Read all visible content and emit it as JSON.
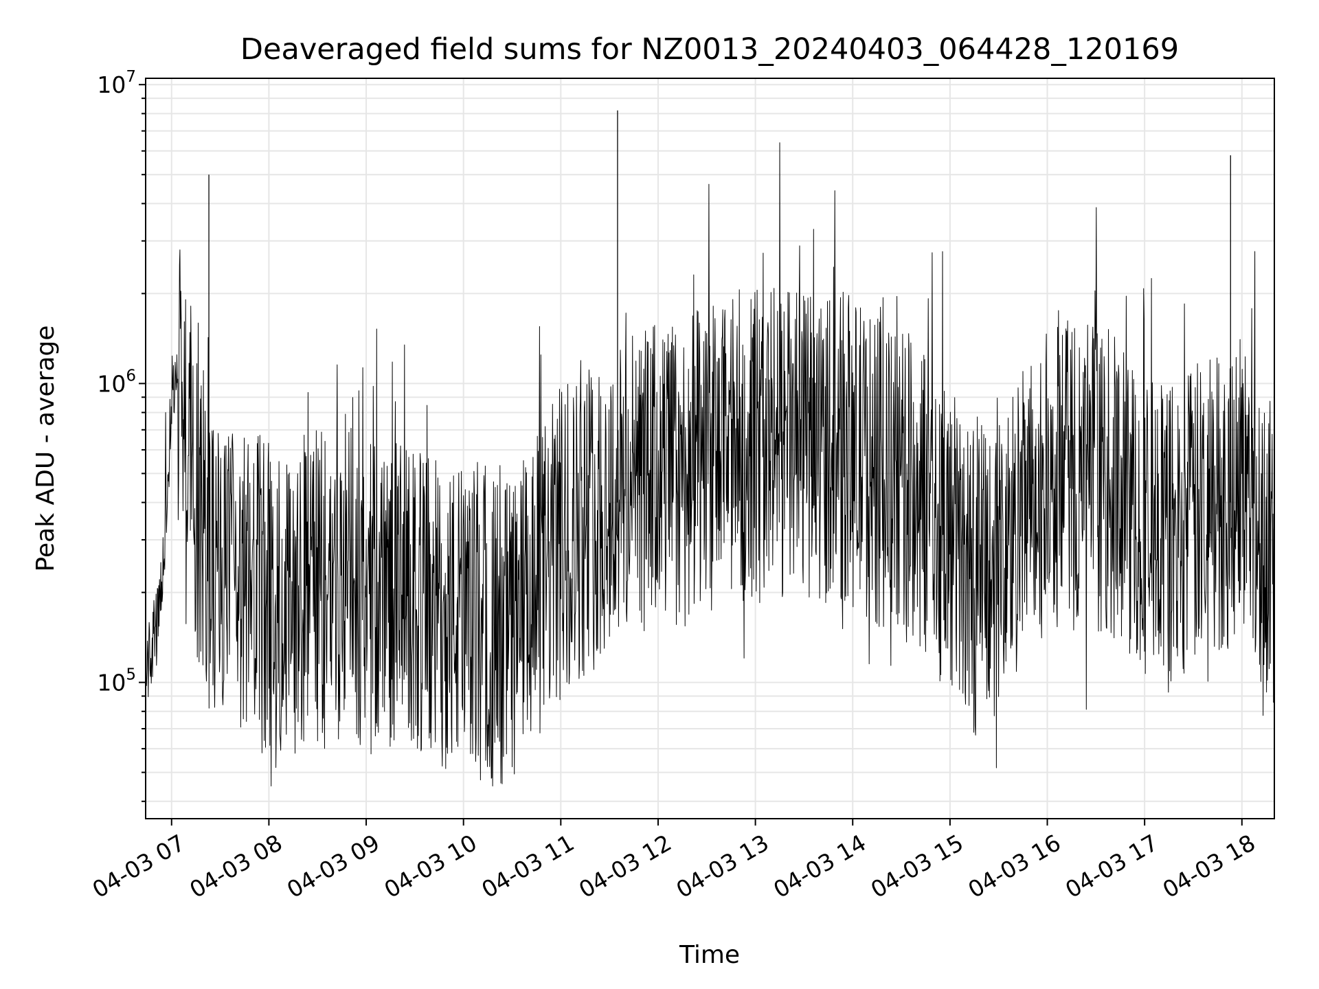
{
  "chart_data": {
    "type": "line",
    "title": "Deaveraged field sums for NZ0013_20240403_064428_120169",
    "xlabel": "Time",
    "ylabel": "Peak ADU - average",
    "y_scale": "log",
    "ylim": [
      35000,
      10500000
    ],
    "xlim": [
      "04-03 06:44",
      "04-03 18:20"
    ],
    "x_ticks": [
      "04-03 07",
      "04-03 08",
      "04-03 09",
      "04-03 10",
      "04-03 11",
      "04-03 12",
      "04-03 13",
      "04-03 14",
      "04-03 15",
      "04-03 16",
      "04-03 17",
      "04-03 18"
    ],
    "y_ticks": [
      {
        "base": "10",
        "exp": "5",
        "value": 100000
      },
      {
        "base": "10",
        "exp": "6",
        "value": 1000000
      },
      {
        "base": "10",
        "exp": "7",
        "value": 10000000
      }
    ],
    "grid": true,
    "line_color": "#000000",
    "series": [
      {
        "x": [
          "06:44",
          "06:48",
          "06:52",
          "06:56",
          "07:00",
          "07:04",
          "07:08",
          "07:12",
          "07:16",
          "07:20",
          "07:30",
          "07:40",
          "07:50",
          "08:00",
          "08:15",
          "08:30",
          "08:45",
          "09:00",
          "09:15",
          "09:30",
          "09:45",
          "10:00",
          "10:15",
          "10:30",
          "10:45",
          "11:00",
          "11:15",
          "11:30",
          "11:45",
          "12:00",
          "12:15",
          "12:30",
          "12:45",
          "13:00",
          "13:15",
          "13:30",
          "13:45",
          "14:00",
          "14:15",
          "14:30",
          "14:45",
          "15:00",
          "15:15",
          "15:30",
          "15:45",
          "16:00",
          "16:15",
          "16:30",
          "16:45",
          "17:00",
          "17:15",
          "17:30",
          "17:45",
          "18:00",
          "18:10",
          "18:20"
        ],
        "y": [
          110000,
          130000,
          160000,
          300000,
          900000,
          1100000,
          800000,
          600000,
          400000,
          300000,
          220000,
          200000,
          210000,
          190000,
          200000,
          210000,
          220000,
          200000,
          200000,
          180000,
          170000,
          160000,
          150000,
          150000,
          200000,
          300000,
          350000,
          400000,
          450000,
          500000,
          500000,
          550000,
          600000,
          650000,
          650000,
          600000,
          650000,
          600000,
          500000,
          450000,
          400000,
          300000,
          220000,
          250000,
          350000,
          450000,
          500000,
          500000,
          420000,
          350000,
          300000,
          350000,
          400000,
          500000,
          350000,
          250000
        ]
      }
    ],
    "annotations": [
      {
        "x": "07:23",
        "y": 5000000,
        "label": ""
      },
      {
        "x": "11:35",
        "y": 8200000,
        "label": ""
      },
      {
        "x": "17:53",
        "y": 5800000,
        "label": ""
      }
    ]
  }
}
